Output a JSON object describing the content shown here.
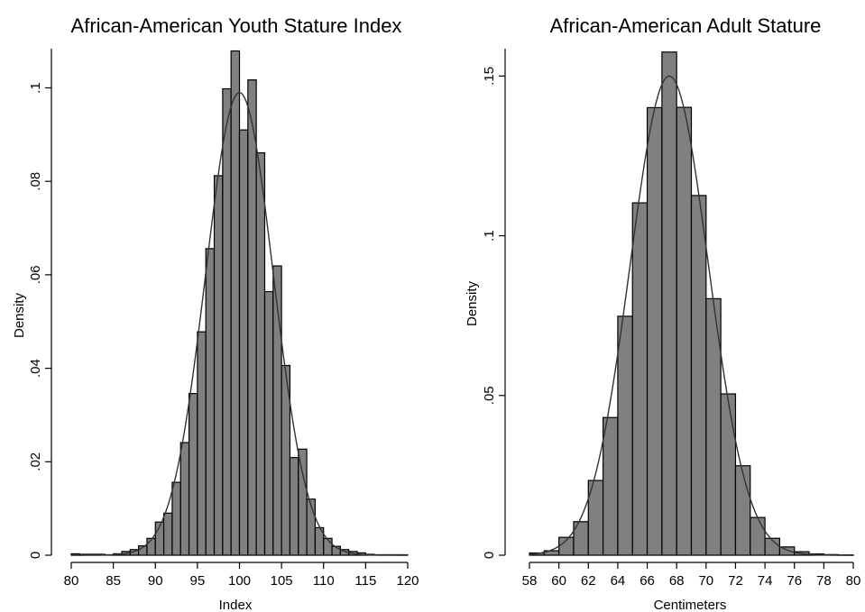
{
  "chart_data": [
    {
      "type": "bar",
      "title": "African-American Youth Stature Index",
      "xlabel": "Index",
      "ylabel": "Density",
      "xlim": [
        80,
        120
      ],
      "ylim": [
        0,
        0.108
      ],
      "xticks": [
        80,
        85,
        90,
        95,
        100,
        105,
        110,
        115,
        120
      ],
      "xtick_labels": [
        "80",
        "85",
        "90",
        "95",
        "100",
        "105",
        "110",
        "115",
        "120"
      ],
      "yticks": [
        0,
        0.02,
        0.04,
        0.06,
        0.08,
        0.1
      ],
      "ytick_labels": [
        "0",
        ".02",
        ".04",
        ".06",
        ".08",
        ".1"
      ],
      "bin_width": 1,
      "bins": [
        80,
        81,
        82,
        83,
        84,
        85,
        86,
        87,
        88,
        89,
        90,
        91,
        92,
        93,
        94,
        95,
        96,
        97,
        98,
        99,
        100,
        101,
        102,
        103,
        104,
        105,
        106,
        107,
        108,
        109,
        110,
        111,
        112,
        113,
        114,
        115,
        116,
        117,
        118,
        119
      ],
      "values": [
        0.0003,
        0.0002,
        0.0002,
        0.0002,
        0.0001,
        0.0003,
        0.0008,
        0.0012,
        0.002,
        0.0036,
        0.0071,
        0.009,
        0.0156,
        0.0241,
        0.0346,
        0.0478,
        0.0656,
        0.0812,
        0.0998,
        0.1079,
        0.091,
        0.1017,
        0.0861,
        0.0564,
        0.0619,
        0.0406,
        0.0209,
        0.0227,
        0.012,
        0.0059,
        0.0036,
        0.0019,
        0.0012,
        0.0008,
        0.0005,
        0.0002,
        0.0001,
        0.0001,
        0.0001,
        0.0001
      ],
      "density_curve": {
        "type": "normal",
        "mean": 100,
        "sd": 4.03
      }
    },
    {
      "type": "bar",
      "title": "African-American Adult Stature",
      "xlabel": "Centimeters",
      "ylabel": "Density",
      "xlim": [
        58,
        80
      ],
      "ylim": [
        0,
        0.158
      ],
      "xticks": [
        58,
        60,
        62,
        64,
        66,
        68,
        70,
        72,
        74,
        76,
        78,
        80
      ],
      "xtick_labels": [
        "58",
        "60",
        "62",
        "64",
        "66",
        "68",
        "70",
        "72",
        "74",
        "76",
        "78",
        "80"
      ],
      "yticks": [
        0,
        0.05,
        0.1,
        0.15
      ],
      "ytick_labels": [
        "0",
        ".05",
        ".1",
        ".15"
      ],
      "bin_width": 1,
      "bins": [
        58,
        59,
        60,
        61,
        62,
        63,
        64,
        65,
        66,
        67,
        68,
        69,
        70,
        71,
        72,
        73,
        74,
        75,
        76,
        77,
        78,
        79
      ],
      "values": [
        0.0007,
        0.0014,
        0.0056,
        0.0105,
        0.0234,
        0.0431,
        0.0748,
        0.1103,
        0.1401,
        0.1575,
        0.1402,
        0.1126,
        0.0803,
        0.0505,
        0.028,
        0.0118,
        0.0053,
        0.0026,
        0.0011,
        0.0004,
        0.0002,
        0.0001
      ],
      "density_curve": {
        "type": "normal",
        "mean": 67.5,
        "sd": 2.66
      }
    }
  ]
}
